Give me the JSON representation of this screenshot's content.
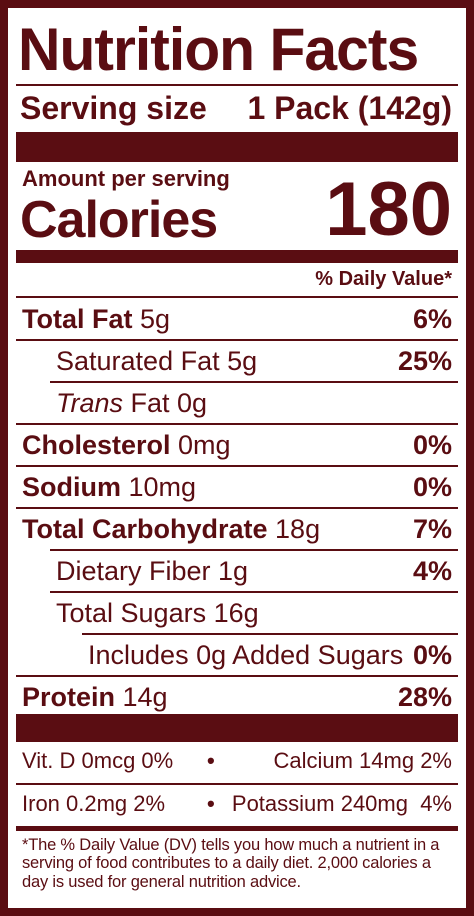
{
  "title": "Nutrition Facts",
  "serving": {
    "label": "Serving size",
    "value": "1 Pack (142g)"
  },
  "calories": {
    "amount_label": "Amount per serving",
    "label": "Calories",
    "value": "180"
  },
  "dv_header": "% Daily Value*",
  "nutrients": [
    {
      "name": "Total Fat",
      "amount": " 5g",
      "dv": "6%"
    },
    {
      "name": "Saturated Fat 5g",
      "dv": "25%"
    },
    {
      "name_italic": "Trans",
      "name_rest": " Fat 0g"
    },
    {
      "name": "Cholesterol",
      "amount": " 0mg",
      "dv": "0%"
    },
    {
      "name": "Sodium",
      "amount": " 10mg",
      "dv": "0%"
    },
    {
      "name": "Total Carbohydrate",
      "amount": " 18g",
      "dv": "7%"
    },
    {
      "name": "Dietary Fiber 1g",
      "dv": "4%"
    },
    {
      "name": "Total Sugars 16g"
    },
    {
      "name": "Includes 0g Added Sugars",
      "dv": "0%"
    },
    {
      "name": "Protein",
      "amount": " 14g",
      "dv": "28%"
    }
  ],
  "vitamins": {
    "row1": {
      "left": "Vit. D 0mcg 0%",
      "right": "Calcium 14mg 2%"
    },
    "row2": {
      "left": "Iron 0.2mg 2%",
      "right": "Potassium 240mg  4%"
    },
    "bullet": "•"
  },
  "footnote": "*The % Daily Value (DV) tells you how much a nutrient in a serving of food contributes to a daily diet. 2,000 calories a day is used for general nutrition advice."
}
